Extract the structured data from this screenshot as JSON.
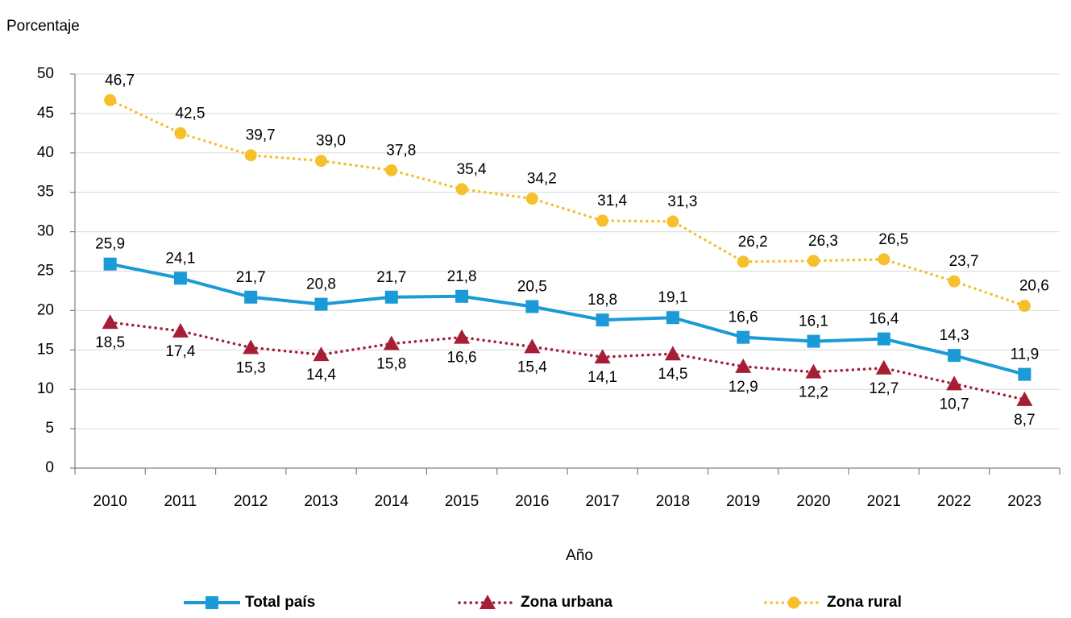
{
  "chart_data": {
    "type": "line",
    "ylabel": "Porcentaje",
    "xlabel": "Año",
    "categories": [
      "2010",
      "2011",
      "2012",
      "2013",
      "2014",
      "2015",
      "2016",
      "2017",
      "2018",
      "2019",
      "2020",
      "2021",
      "2022",
      "2023"
    ],
    "ylim": [
      0,
      50
    ],
    "yticks": [
      0,
      5,
      10,
      15,
      20,
      25,
      30,
      35,
      40,
      45,
      50
    ],
    "grid": true,
    "legend": "bottom",
    "series": [
      {
        "name": "Total país",
        "color": "#1a9ad6",
        "marker": "square",
        "style": "solid",
        "values": [
          25.9,
          24.1,
          21.7,
          20.8,
          21.7,
          21.8,
          20.5,
          18.8,
          19.1,
          16.6,
          16.1,
          16.4,
          14.3,
          11.9
        ],
        "value_labels": [
          "25,9",
          "24,1",
          "21,7",
          "20,8",
          "21,7",
          "21,8",
          "20,5",
          "18,8",
          "19,1",
          "16,6",
          "16,1",
          "16,4",
          "14,3",
          "11,9"
        ]
      },
      {
        "name": "Zona urbana",
        "color": "#a51e36",
        "marker": "triangle",
        "style": "dotted",
        "values": [
          18.5,
          17.4,
          15.3,
          14.4,
          15.8,
          16.6,
          15.4,
          14.1,
          14.5,
          12.9,
          12.2,
          12.7,
          10.7,
          8.7
        ],
        "value_labels": [
          "18,5",
          "17,4",
          "15,3",
          "14,4",
          "15,8",
          "16,6",
          "15,4",
          "14,1",
          "14,5",
          "12,9",
          "12,2",
          "12,7",
          "10,7",
          "8,7"
        ]
      },
      {
        "name": "Zona rural",
        "color": "#f5c02c",
        "marker": "circle",
        "style": "dotted",
        "values": [
          46.7,
          42.5,
          39.7,
          39.0,
          37.8,
          35.4,
          34.2,
          31.4,
          31.3,
          26.2,
          26.3,
          26.5,
          23.7,
          20.6
        ],
        "value_labels": [
          "46,7",
          "42,5",
          "39,7",
          "39,0",
          "37,8",
          "35,4",
          "34,2",
          "31,4",
          "31,3",
          "26,2",
          "26,3",
          "26,5",
          "23,7",
          "20,6"
        ]
      }
    ]
  }
}
